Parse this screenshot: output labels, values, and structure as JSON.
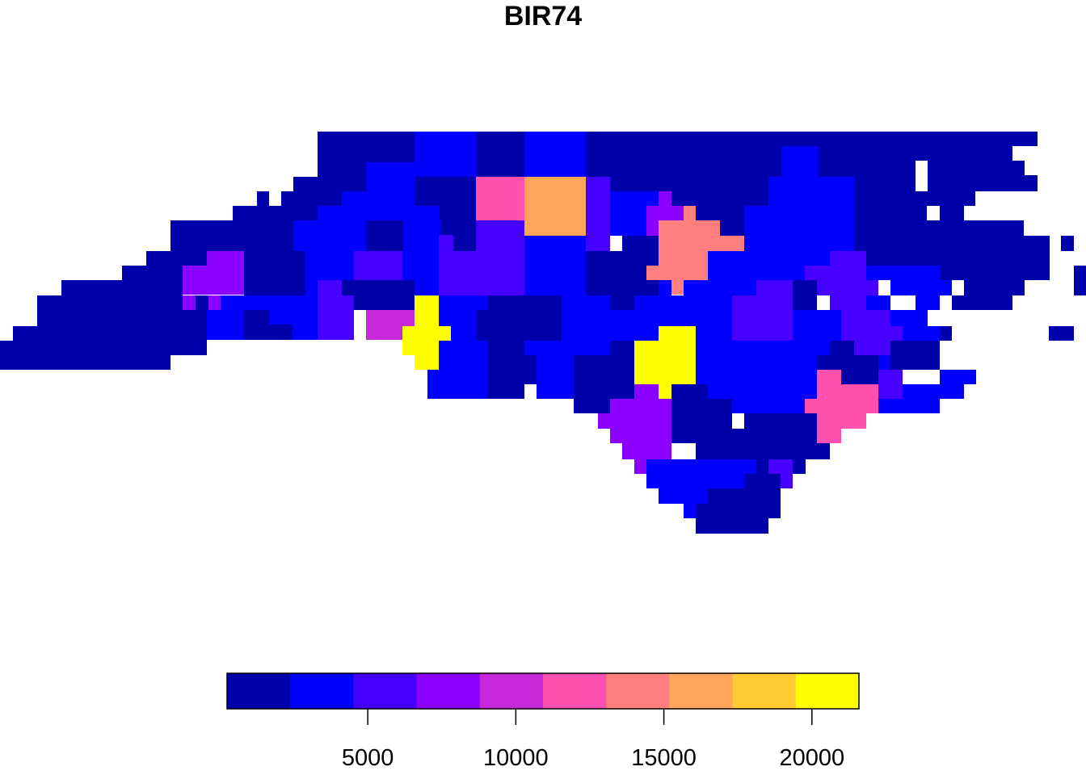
{
  "title": "BIR74",
  "legend": {
    "colors": [
      "#0000AA",
      "#0000FF",
      "#4600FF",
      "#8B00FF",
      "#C729DA",
      "#FF50B0",
      "#FF7F7F",
      "#FFA55A",
      "#FFCD32",
      "#FFFF00"
    ],
    "range": [
      248,
      21588
    ],
    "ticks": [
      5000,
      10000,
      15000,
      20000
    ],
    "tick_labels": [
      "5000",
      "10000",
      "15000",
      "20000"
    ]
  },
  "map": {
    "region": "North Carolina counties (rasterized)",
    "palette_by_bin": [
      "#0000AA",
      "#0000FF",
      "#4600FF",
      "#8B00FF",
      "#C729DA",
      "#FF50B0",
      "#FF7F7F",
      "#FFA55A",
      "#FFCD32",
      "#FFFF00"
    ]
  }
}
